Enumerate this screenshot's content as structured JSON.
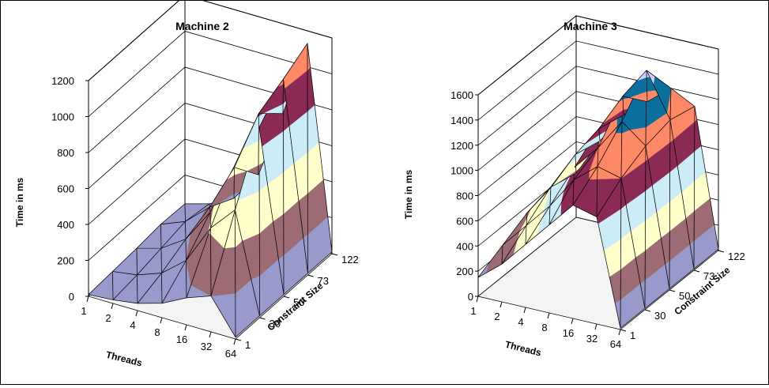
{
  "chart_data": [
    {
      "type": "surface3d",
      "title": "Machine 2",
      "zlabel": "Time in ms",
      "xlabel": "Threads",
      "ylabel": "Constraint Size",
      "threads": [
        "64",
        "32",
        "16",
        "8",
        "4",
        "2",
        "1"
      ],
      "constraint_sizes": [
        "1",
        "30",
        "50",
        "73",
        "122"
      ],
      "zlim": [
        0,
        1200
      ],
      "zticks": [
        "0",
        "200",
        "400",
        "600",
        "800",
        "1000",
        "1200"
      ],
      "bands": [
        {
          "from": 0,
          "to": 200,
          "color": "#9999cc"
        },
        {
          "from": 200,
          "to": 400,
          "color": "#9c6b73"
        },
        {
          "from": 400,
          "to": 600,
          "color": "#ffffcc"
        },
        {
          "from": 600,
          "to": 800,
          "color": "#ccecf8"
        },
        {
          "from": 800,
          "to": 1000,
          "color": "#8b2a55"
        },
        {
          "from": 1000,
          "to": 1200,
          "color": "#ff8866"
        }
      ],
      "values": [
        [
          10,
          10,
          10,
          10,
          10
        ],
        [
          200,
          560,
          900,
          1050,
          1130
        ],
        [
          150,
          420,
          650,
          820,
          700
        ],
        [
          80,
          200,
          350,
          480,
          320
        ],
        [
          40,
          90,
          160,
          220,
          150
        ],
        [
          20,
          40,
          70,
          100,
          80
        ],
        [
          10,
          20,
          30,
          45,
          40
        ]
      ]
    },
    {
      "type": "surface3d",
      "title": "Machine 3",
      "zlabel": "Time in ms",
      "xlabel": "Threads",
      "ylabel": "Constraint Size",
      "threads": [
        "64",
        "32",
        "16",
        "8",
        "4",
        "2",
        "1"
      ],
      "constraint_sizes": [
        "1",
        "30",
        "50",
        "73",
        "122"
      ],
      "zlim": [
        0,
        1600
      ],
      "zticks": [
        "0",
        "200",
        "400",
        "600",
        "800",
        "1000",
        "1200",
        "1400",
        "1600"
      ],
      "bands": [
        {
          "from": 0,
          "to": 200,
          "color": "#9999cc"
        },
        {
          "from": 200,
          "to": 400,
          "color": "#9c6b73"
        },
        {
          "from": 400,
          "to": 600,
          "color": "#ffffcc"
        },
        {
          "from": 600,
          "to": 800,
          "color": "#ccecf8"
        },
        {
          "from": 800,
          "to": 1000,
          "color": "#8b2a55"
        },
        {
          "from": 1000,
          "to": 1200,
          "color": "#ff8866"
        },
        {
          "from": 1200,
          "to": 1400,
          "color": "#0b6f9e"
        },
        {
          "from": 1400,
          "to": 1600,
          "color": "#ccccff"
        }
      ],
      "values": [
        [
          10,
          10,
          10,
          10,
          10
        ],
        [
          850,
          1000,
          1100,
          1150,
          1100
        ],
        [
          900,
          1050,
          1250,
          1500,
          1200
        ],
        [
          700,
          900,
          1000,
          1250,
          1050
        ],
        [
          500,
          650,
          800,
          950,
          900
        ],
        [
          300,
          450,
          600,
          700,
          650
        ],
        [
          150,
          250,
          350,
          400,
          350
        ]
      ]
    }
  ]
}
